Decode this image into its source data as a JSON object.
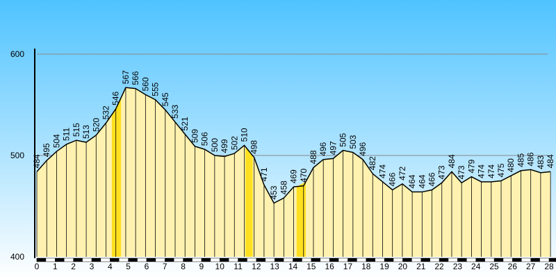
{
  "chart_data": {
    "type": "area",
    "x": [
      0,
      0.54,
      1.08,
      1.62,
      2.16,
      2.7,
      3.24,
      3.78,
      4.32,
      4.86,
      5.4,
      5.94,
      6.48,
      7.02,
      7.56,
      8.1,
      8.64,
      9.18,
      9.72,
      10.26,
      10.8,
      11.34,
      11.88,
      12.42,
      12.96,
      13.5,
      14.04,
      14.58,
      15.12,
      15.66,
      16.2,
      16.74,
      17.28,
      17.82,
      18.36,
      18.9,
      19.44,
      19.98,
      20.52,
      21.06,
      21.6,
      22.14,
      22.68,
      23.22,
      23.76,
      24.3,
      24.84,
      25.38,
      25.92,
      26.46,
      27.0,
      27.54,
      28.08
    ],
    "values": [
      484,
      495,
      504,
      511,
      515,
      513,
      520,
      532,
      546,
      567,
      566,
      560,
      555,
      545,
      533,
      521,
      509,
      506,
      500,
      499,
      502,
      510,
      498,
      471,
      453,
      458,
      469,
      470,
      488,
      496,
      497,
      505,
      503,
      496,
      482,
      474,
      466,
      472,
      464,
      464,
      466,
      473,
      484,
      473,
      479,
      474,
      474,
      475,
      480,
      485,
      486,
      483,
      484
    ],
    "color": "#fff2b0",
    "highlight_color": "#ffe020",
    "highlights": [
      [
        4.1,
        4.6
      ],
      [
        11.4,
        11.8
      ],
      [
        14.2,
        14.7
      ]
    ],
    "xlim": [
      0,
      28.38
    ],
    "xticks": [
      0,
      1,
      2,
      3,
      4,
      5,
      6,
      7,
      8,
      9,
      10,
      11,
      12,
      13,
      14,
      15,
      16,
      17,
      18,
      19,
      20,
      21,
      22,
      23,
      24,
      25,
      26,
      27,
      28
    ],
    "ylim": [
      400,
      600
    ],
    "yticks": [
      400,
      500,
      600
    ],
    "grid": true
  }
}
